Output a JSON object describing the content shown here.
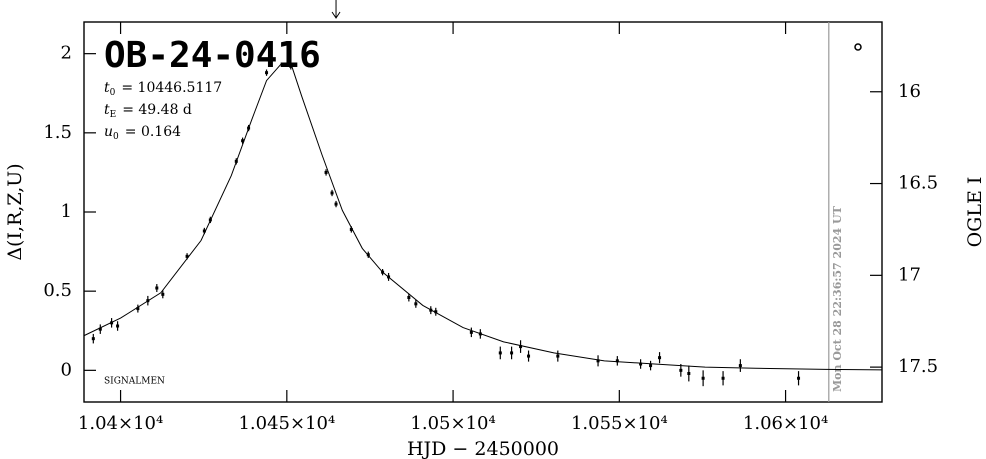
{
  "chart_data": {
    "type": "scatter",
    "title": "OB-24-0416",
    "parameters": [
      {
        "symbol": "t",
        "sub": "0",
        "text": "= 10446.5117"
      },
      {
        "symbol": "t",
        "sub": "E",
        "text": "= 49.48 d"
      },
      {
        "symbol": "u",
        "sub": "0",
        "text": "= 0.164"
      }
    ],
    "source_label": "SIGNALMEN",
    "xlabel": "HJD − 2450000",
    "ylabel": "Δ(I,R,Z,U)",
    "y2label": "OGLE I",
    "xlim": [
      10389,
      10629
    ],
    "xticks": [
      {
        "value": 10400,
        "label": "1.04×10⁴"
      },
      {
        "value": 10450,
        "label": "1.045×10⁴"
      },
      {
        "value": 10500,
        "label": "1.05×10⁴"
      },
      {
        "value": 10550,
        "label": "1.055×10⁴"
      },
      {
        "value": 10600,
        "label": "1.06×10⁴"
      }
    ],
    "ylim": [
      -0.2,
      2.2
    ],
    "yticks": [
      0,
      0.5,
      1,
      1.5,
      2
    ],
    "y2lim": [
      17.69,
      15.62
    ],
    "y2ticks": [
      16,
      16.5,
      17,
      17.5
    ],
    "color": "#000000",
    "points": {
      "x": [
        10391.8,
        10393.9,
        10397.3,
        10399.1,
        10405.2,
        10408.2,
        10410.9,
        10412.7,
        10420.0,
        10425.2,
        10427.0,
        10434.8,
        10436.7,
        10438.5,
        10443.9,
        10451.2,
        10461.8,
        10463.6,
        10464.8,
        10469.4,
        10474.5,
        10478.8,
        10480.6,
        10486.7,
        10488.8,
        10493.3,
        10494.8,
        10505.5,
        10508.2,
        10514.2,
        10517.6,
        10520.3,
        10522.7,
        10531.5,
        10543.6,
        10549.4,
        10556.4,
        10559.4,
        10562.1,
        10568.5,
        10570.9,
        10575.2,
        10581.2,
        10586.4,
        10603.9
      ],
      "values": [
        0.2,
        0.26,
        0.3,
        0.28,
        0.39,
        0.44,
        0.52,
        0.48,
        0.72,
        0.88,
        0.95,
        1.32,
        1.45,
        1.53,
        1.88,
        1.92,
        1.25,
        1.12,
        1.05,
        0.89,
        0.73,
        0.62,
        0.59,
        0.46,
        0.42,
        0.38,
        0.37,
        0.24,
        0.23,
        0.11,
        0.11,
        0.15,
        0.09,
        0.09,
        0.06,
        0.06,
        0.04,
        0.03,
        0.08,
        0.0,
        -0.02,
        -0.05,
        -0.05,
        0.03,
        -0.05
      ],
      "errors": [
        0.03,
        0.03,
        0.03,
        0.03,
        0.025,
        0.03,
        0.025,
        0.025,
        0.02,
        0.02,
        0.02,
        0.02,
        0.02,
        0.02,
        0.02,
        0.02,
        0.02,
        0.02,
        0.02,
        0.02,
        0.02,
        0.02,
        0.025,
        0.025,
        0.025,
        0.025,
        0.025,
        0.03,
        0.03,
        0.04,
        0.04,
        0.04,
        0.035,
        0.035,
        0.035,
        0.03,
        0.03,
        0.03,
        0.035,
        0.04,
        0.05,
        0.05,
        0.045,
        0.04,
        0.045
      ]
    },
    "model": {
      "x": [
        10389.1,
        10400,
        10412.1,
        10424.2,
        10433.3,
        10439.4,
        10443.9,
        10448.5,
        10451.5,
        10454.5,
        10460.6,
        10466.7,
        10472.7,
        10478.8,
        10490.9,
        10503,
        10515.2,
        10530.3,
        10545.5,
        10560.6,
        10575.8,
        10590.9,
        10612.1,
        10629
      ],
      "values": [
        0.22,
        0.33,
        0.49,
        0.82,
        1.23,
        1.58,
        1.83,
        1.94,
        1.92,
        1.73,
        1.36,
        1.01,
        0.77,
        0.62,
        0.41,
        0.27,
        0.18,
        0.11,
        0.06,
        0.04,
        0.02,
        0.013,
        0.006,
        0.003
      ]
    },
    "now_line": {
      "x": 10613,
      "label": "Mon Oct 28 22:36:57 2024 UT",
      "color": "#999999"
    },
    "arrow_x": 10464.8
  }
}
